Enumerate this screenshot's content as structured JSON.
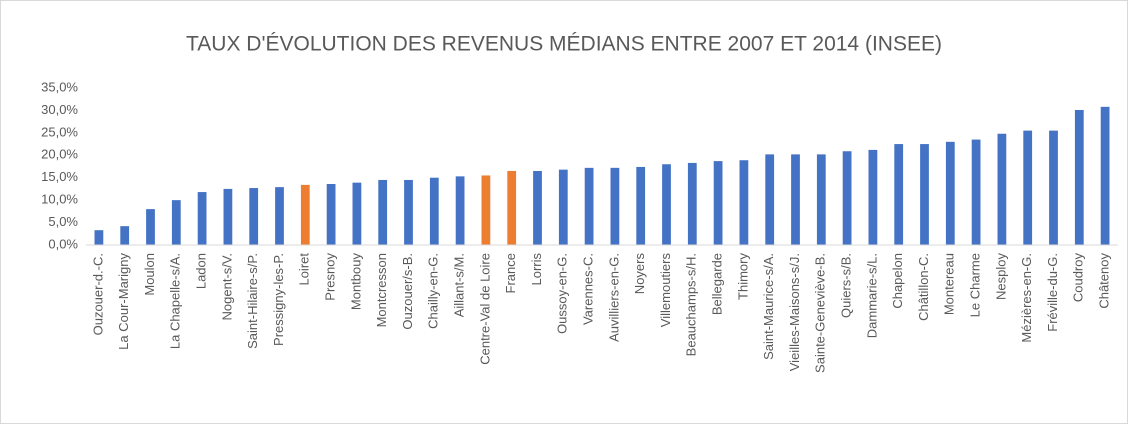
{
  "chart_data": {
    "type": "bar",
    "title": "TAUX D'ÉVOLUTION  DES REVENUS MÉDIANS ENTRE 2007 ET 2014 (INSEE)",
    "categories": [
      "Ouzouer-d.-C.",
      "La Cour-Marigny",
      "Moulon",
      "La Chapelle-s/A.",
      "Ladon",
      "Nogent-s/V.",
      "Saint-Hilaire-s/P.",
      "Pressigny-les-P.",
      "Loiret",
      "Presnoy",
      "Montbouy",
      "Montcresson",
      "Ouzouer/s-B.",
      "Chailly-en-G.",
      "Aillant-s/M.",
      "Centre-Val de Loire",
      "France",
      "Lorris",
      "Oussoy-en-G.",
      "Varennes-C.",
      "Auvilliers-en-G.",
      "Noyers",
      "Villemoutiers",
      "Beauchamps-s/H.",
      "Bellegarde",
      "Thimory",
      "Saint-Maurice-s/A.",
      "Vieilles-Maisons-s/J.",
      "Sainte-Geneviève-B.",
      "Quiers-s/B.",
      "Dammarie-s/L.",
      "Chapelon",
      "Châtillon-C.",
      "Montereau",
      "Le Charme",
      "Nesploy",
      "Mézières-en-G.",
      "Fréville-du-G.",
      "Coudroy",
      "Châtenoy"
    ],
    "values": [
      3.3,
      4.2,
      8.0,
      10.0,
      11.8,
      12.5,
      12.7,
      12.9,
      13.4,
      13.6,
      13.9,
      14.5,
      14.5,
      15.0,
      15.3,
      15.5,
      16.5,
      16.5,
      16.8,
      17.2,
      17.2,
      17.4,
      18.0,
      18.3,
      18.7,
      18.9,
      20.2,
      20.2,
      20.2,
      20.9,
      21.2,
      22.5,
      22.5,
      23.0,
      23.5,
      24.8,
      25.5,
      25.5,
      30.1,
      30.8
    ],
    "colors": [
      "#4472c4",
      "#4472c4",
      "#4472c4",
      "#4472c4",
      "#4472c4",
      "#4472c4",
      "#4472c4",
      "#4472c4",
      "#ed7d31",
      "#4472c4",
      "#4472c4",
      "#4472c4",
      "#4472c4",
      "#4472c4",
      "#4472c4",
      "#ed7d31",
      "#ed7d31",
      "#4472c4",
      "#4472c4",
      "#4472c4",
      "#4472c4",
      "#4472c4",
      "#4472c4",
      "#4472c4",
      "#4472c4",
      "#4472c4",
      "#4472c4",
      "#4472c4",
      "#4472c4",
      "#4472c4",
      "#4472c4",
      "#4472c4",
      "#4472c4",
      "#4472c4",
      "#4472c4",
      "#4472c4",
      "#4472c4",
      "#4472c4",
      "#4472c4",
      "#4472c4"
    ],
    "ylim": [
      0,
      35
    ],
    "yticks": [
      {
        "value": 0,
        "label": "0,0%"
      },
      {
        "value": 5,
        "label": "5,0%"
      },
      {
        "value": 10,
        "label": "10,0%"
      },
      {
        "value": 15,
        "label": "15,0%"
      },
      {
        "value": 20,
        "label": "20,0%"
      },
      {
        "value": 25,
        "label": "25,0%"
      },
      {
        "value": 30,
        "label": "30,0%"
      },
      {
        "value": 35,
        "label": "35,0%"
      }
    ],
    "grid": false
  }
}
